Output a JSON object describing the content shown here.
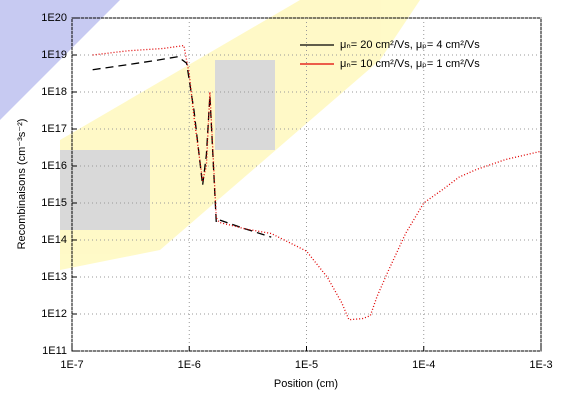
{
  "chart_data": {
    "type": "line",
    "log_x": true,
    "log_y": true,
    "grid": true,
    "legend": "upper right",
    "x_label": "Position (cm)",
    "y_label": "Recombinaisons (cm⁻³s⁻²)",
    "xlim": [
      1e-07,
      0.001
    ],
    "xticks": [
      {
        "value": 1e-07,
        "label": "1E-7"
      },
      {
        "value": 1e-06,
        "label": "1E-6"
      },
      {
        "value": 1e-05,
        "label": "1E-5"
      },
      {
        "value": 0.0001,
        "label": "1E-4"
      },
      {
        "value": 0.001,
        "label": "1E-3"
      }
    ],
    "ylim": [
      100000000000.0,
      1e+20
    ],
    "yticks": [
      {
        "value": 100000000000.0,
        "label": "1E11"
      },
      {
        "value": 1000000000000.0,
        "label": "1E12"
      },
      {
        "value": 10000000000000.0,
        "label": "1E13"
      },
      {
        "value": 100000000000000.0,
        "label": "1E14"
      },
      {
        "value": 1000000000000000.0,
        "label": "1E15"
      },
      {
        "value": 1e+16,
        "label": "1E16"
      },
      {
        "value": 1e+17,
        "label": "1E17"
      },
      {
        "value": 1e+18,
        "label": "1E18"
      },
      {
        "value": 1e+19,
        "label": "1E19"
      },
      {
        "value": 1e+20,
        "label": "1E20"
      }
    ],
    "series": [
      {
        "name": "μₙ= 20 cm²/Vs, μₚ= 4 cm²/Vs",
        "color": "#000000",
        "dash": "8,5",
        "x": [
          1.5e-07,
          3e-07,
          5e-07,
          8e-07,
          9.5e-07,
          1.1e-06,
          1.3e-06,
          1.4e-06,
          1.5e-06,
          1.7e-06,
          1.8e-06,
          3e-06,
          4e-06,
          5e-06
        ],
        "values": [
          4e+18,
          5.5e+18,
          7e+18,
          9e+18,
          6e+18,
          3e+17,
          3000000000000000.0,
          2e+16,
          8e+17,
          300000000000000.0,
          350000000000000.0,
          200000000000000.0,
          150000000000000.0,
          120000000000000.0
        ]
      },
      {
        "name": "μₙ= 10 cm²/Vs, μₚ= 1 cm²/Vs",
        "color": "#e00000",
        "dash": "1,2",
        "x": [
          1.5e-07,
          3e-07,
          6e-07,
          9e-07,
          1e-06,
          1.1e-06,
          1.3e-06,
          1.4e-06,
          1.5e-06,
          1.7e-06,
          1.8e-06,
          3e-06,
          5e-06,
          1e-05,
          1.5e-05,
          2e-05,
          2.3e-05,
          3e-05,
          3.5e-05,
          4e-05,
          5e-05,
          7e-05,
          0.0001,
          0.00015,
          0.0002,
          0.00028,
          0.0005,
          0.001
        ],
        "values": [
          1e+19,
          1.3e+19,
          1.5e+19,
          1.8e+19,
          3e+18,
          2e+17,
          4000000000000000.0,
          1e+16,
          1e+18,
          400000000000000.0,
          300000000000000.0,
          200000000000000.0,
          150000000000000.0,
          50000000000000.0,
          10000000000000.0,
          2000000000000.0,
          700000000000.0,
          750000000000.0,
          900000000000.0,
          3000000000000.0,
          15000000000000.0,
          150000000000000.0,
          1000000000000000.0,
          2500000000000000.0,
          5000000000000000.0,
          8000000000000000.0,
          1.5e+16,
          2.5e+16
        ]
      }
    ]
  }
}
